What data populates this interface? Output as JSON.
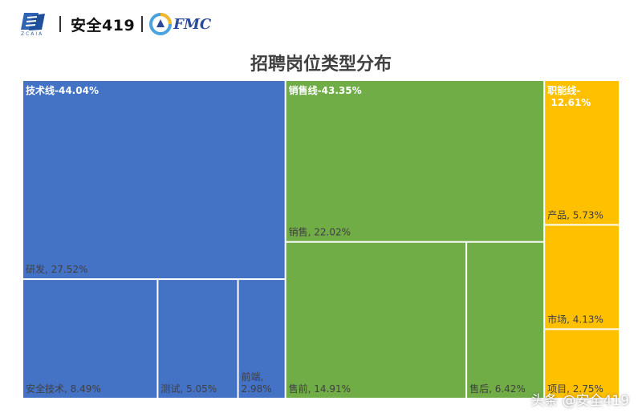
{
  "header": {
    "brand_text": "安全419",
    "logo_caption": "ZCAIA",
    "partner_text": "FMC"
  },
  "colors": {
    "tech": "#4472c4",
    "sales": "#70ad47",
    "func": "#ffc000",
    "label_dark": "#404040",
    "label_light": "#ffffff"
  },
  "chart_data": {
    "type": "treemap",
    "title": "招聘岗位类型分布",
    "groups": [
      {
        "name": "技术线",
        "label": "技术线-44.04%",
        "value": 44.04,
        "color": "#4472c4",
        "children": [
          {
            "name": "研发",
            "label": "研发, 27.52%",
            "value": 27.52
          },
          {
            "name": "安全技术",
            "label": "安全技术, 8.49%",
            "value": 8.49
          },
          {
            "name": "测试",
            "label": "测试, 5.05%",
            "value": 5.05
          },
          {
            "name": "前端",
            "label": "前端, 2.98%",
            "value": 2.98
          }
        ]
      },
      {
        "name": "销售线",
        "label": "销售线-43.35%",
        "value": 43.35,
        "color": "#70ad47",
        "children": [
          {
            "name": "销售",
            "label": "销售, 22.02%",
            "value": 22.02
          },
          {
            "name": "售前",
            "label": "售前, 14.91%",
            "value": 14.91
          },
          {
            "name": "售后",
            "label": "售后, 6.42%",
            "value": 6.42
          }
        ]
      },
      {
        "name": "职能线",
        "label": "职能线-12.61%",
        "value": 12.61,
        "color": "#ffc000",
        "children": [
          {
            "name": "产品",
            "label": "产品, 5.73%",
            "value": 5.73
          },
          {
            "name": "市场",
            "label": "市场, 4.13%",
            "value": 4.13
          },
          {
            "name": "项目",
            "label": "项目, 2.75%",
            "value": 2.75
          }
        ]
      }
    ]
  },
  "watermark": "头条 @安全419"
}
